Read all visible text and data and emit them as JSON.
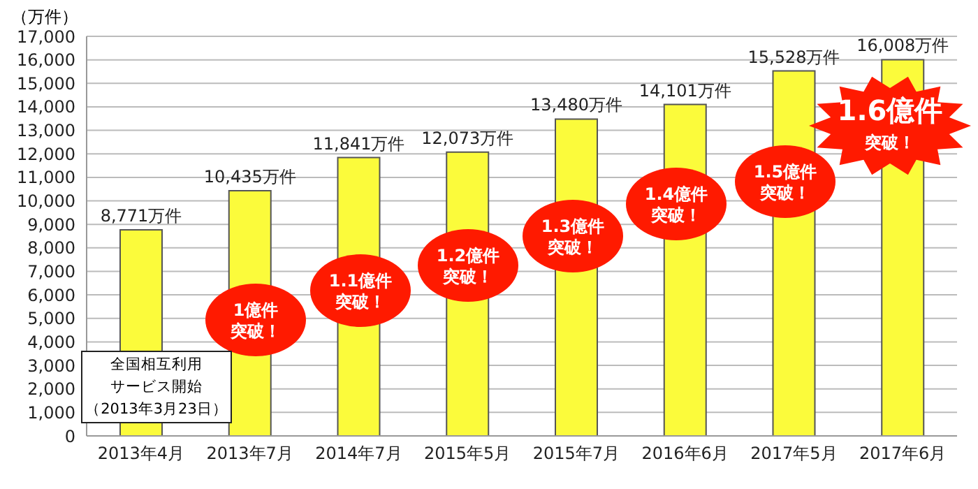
{
  "chart_data": {
    "type": "bar",
    "ylabel": "（万件）",
    "categories": [
      "2013年4月",
      "2013年7月",
      "2014年7月",
      "2015年5月",
      "2015年7月",
      "2016年6月",
      "2017年5月",
      "2017年6月"
    ],
    "values": [
      8771,
      10435,
      11841,
      12073,
      13480,
      14101,
      15528,
      16008
    ],
    "value_labels": [
      "8,771万件",
      "10,435万件",
      "11,841万件",
      "12,073万件",
      "13,480万件",
      "14,101万件",
      "15,528万件",
      "16,008万件"
    ],
    "color": "#fbfb3b",
    "ylim": [
      0,
      17000
    ],
    "yticks": [
      0,
      {
        "value": 1000,
        "label": "1,000"
      },
      {
        "value": 2000,
        "label": "2,000"
      },
      {
        "value": 3000,
        "label": "3,000"
      },
      {
        "value": 4000,
        "label": "4,000"
      },
      {
        "value": 5000,
        "label": "5,000"
      },
      {
        "value": 6000,
        "label": "6,000"
      },
      {
        "value": 7000,
        "label": "7,000"
      },
      {
        "value": 8000,
        "label": "8,000"
      },
      {
        "value": 9000,
        "label": "9,000"
      },
      {
        "value": 10000,
        "label": "10,000"
      },
      {
        "value": 11000,
        "label": "11,000"
      },
      {
        "value": 12000,
        "label": "12,000"
      },
      {
        "value": 13000,
        "label": "13,000"
      },
      {
        "value": 14000,
        "label": "14,000"
      },
      {
        "value": 15000,
        "label": "15,000"
      },
      {
        "value": 16000,
        "label": "16,000"
      },
      {
        "value": 17000,
        "label": "17,000"
      }
    ],
    "grid": "y",
    "annotations": [
      "全国相互利用サービス開始（2013年3月23日）",
      "1億件突破！",
      "1.1億件突破！",
      "1.2億件突破！",
      "1.3億件突破！",
      "1.4億件突破！",
      "1.5億件突破！",
      "1.6億件突破！"
    ]
  }
}
